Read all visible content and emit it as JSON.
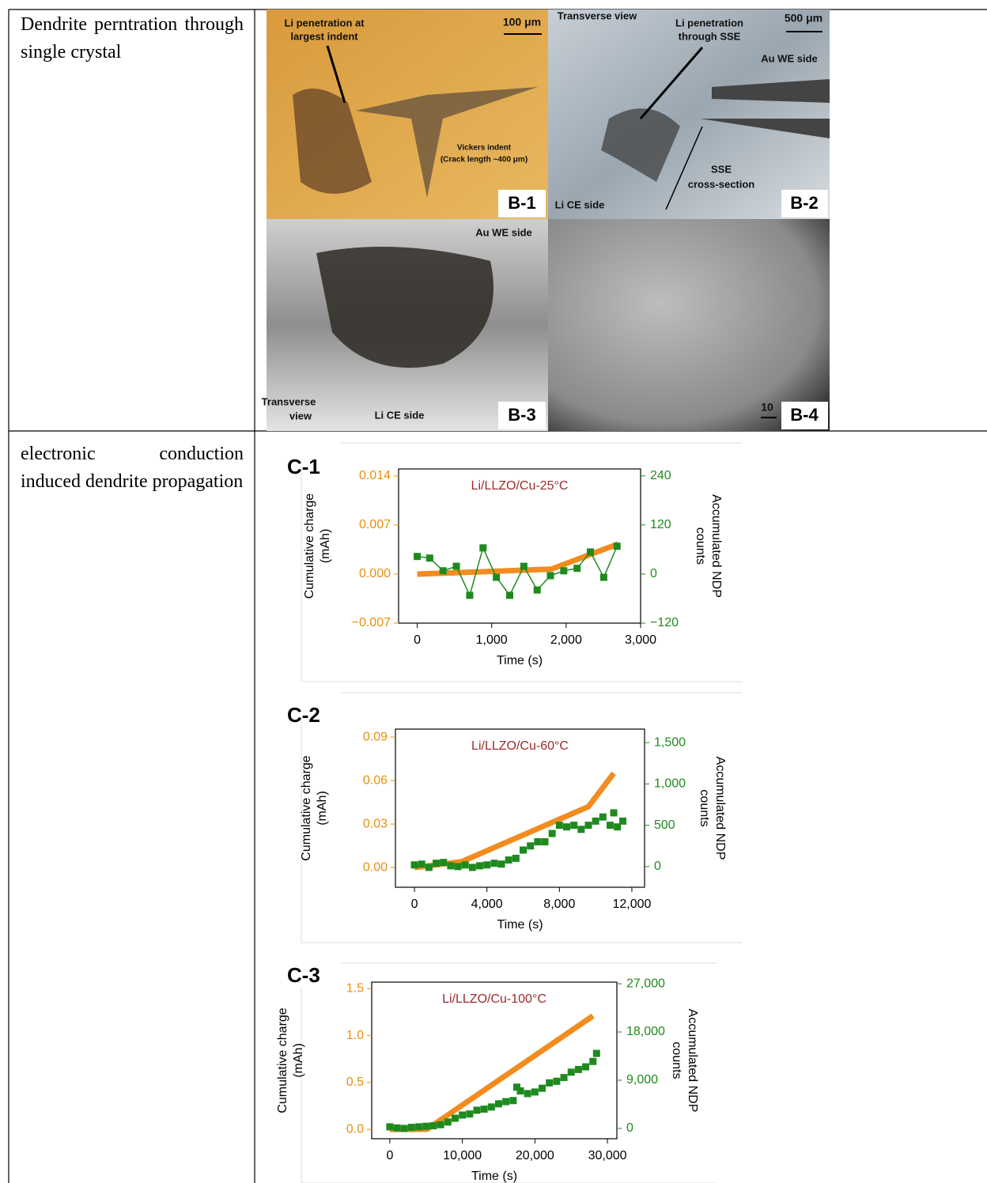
{
  "rows": [
    {
      "label": "Dendrite perntration through single crystal",
      "panels": [
        {
          "id": "B-1",
          "texts": [
            "Li penetration at",
            "largest indent",
            "100 μm",
            "Vickers indent",
            "(Crack length ~400 μm)"
          ]
        },
        {
          "id": "B-2",
          "texts": [
            "Transverse view",
            "Li penetration",
            "through SSE",
            "500 μm",
            "Au WE side",
            "SSE",
            "cross-section",
            "Li CE side"
          ]
        },
        {
          "id": "B-3",
          "texts": [
            "Au WE side",
            "Transverse",
            "view",
            "Li CE side"
          ]
        },
        {
          "id": "B-4",
          "texts": [
            "10"
          ]
        }
      ]
    },
    {
      "label": "electronic conduction induced dendrite propagation",
      "charts": [
        {
          "type": "line",
          "panel": "C-1",
          "title": "Li/LLZO/Cu-25°C",
          "x_label": "Time (s)",
          "y_label": [
            "Cumulative charge",
            "(mAh)"
          ],
          "y2_label": [
            "Accumulated NDP",
            "counts"
          ],
          "xlim": [
            -250,
            3000
          ],
          "xticks": [
            0,
            {
              "value": 1000,
              "label": "1,000"
            },
            {
              "value": 2000,
              "label": "2,000"
            },
            {
              "value": 3000,
              "label": "3,000"
            }
          ],
          "ylim": [
            -0.007,
            0.015
          ],
          "yticks": [
            {
              "value": -0.007,
              "label": "−0.007"
            },
            {
              "value": 0,
              "label": "0.000"
            },
            {
              "value": 0.007,
              "label": "0.007"
            },
            {
              "value": 0.014,
              "label": "0.014"
            }
          ],
          "y2lim": [
            -120,
            257
          ],
          "y2ticks": [
            {
              "value": -120,
              "label": "−120"
            },
            0,
            120,
            240
          ],
          "series": [
            {
              "color": "#f28c1e",
              "x": [
                0,
                1800,
                2700
              ],
              "values": [
                0,
                0.0007,
                0.0043
              ]
            },
            {
              "color": "#1e8a1e",
              "axis": "y2",
              "marker": "square",
              "connected": true,
              "x": [
                0,
                168,
                347,
                526,
                705,
                884,
                1063,
                1242,
                1432,
                1611,
                1789,
                1968,
                2147,
                2326,
                2505,
                2684
              ],
              "values": [
                43,
                39,
                8,
                19,
                -52,
                64,
                -8,
                -52,
                19,
                -39,
                -4,
                8,
                14,
                54,
                -8,
                68
              ]
            }
          ]
        },
        {
          "type": "line",
          "panel": "C-2",
          "title": "Li/LLZO/Cu-60°C",
          "x_label": "Time (s)",
          "y_label": [
            "Cumulative charge",
            "(mAh)"
          ],
          "y2_label": [
            "Accumulated NDP",
            "counts"
          ],
          "xlim": [
            -1050,
            12700
          ],
          "xticks": [
            0,
            {
              "value": 4000,
              "label": "4,000"
            },
            {
              "value": 8000,
              "label": "8,000"
            },
            {
              "value": 12000,
              "label": "12,000"
            }
          ],
          "ylim": [
            -0.0136,
            0.0955
          ],
          "yticks": [
            {
              "value": 0,
              "label": "0.00"
            },
            {
              "value": 0.03,
              "label": "0.03"
            },
            {
              "value": 0.06,
              "label": "0.06"
            },
            {
              "value": 0.09,
              "label": "0.09"
            }
          ],
          "y2lim": [
            -250,
            1663
          ],
          "y2ticks": [
            0,
            500,
            {
              "value": 1000,
              "label": "1,000"
            },
            {
              "value": 1500,
              "label": "1,500"
            }
          ],
          "series": [
            {
              "color": "#f28c1e",
              "x": [
                0,
                2600,
                9600,
                11000
              ],
              "values": [
                0,
                0.004,
                0.042,
                0.065
              ]
            },
            {
              "color": "#1e8a1e",
              "axis": "y2",
              "marker": "square",
              "connected": false,
              "x": [
                0,
                400,
                800,
                1200,
                1600,
                2000,
                2400,
                2800,
                3200,
                3600,
                4000,
                4400,
                4800,
                5200,
                5600,
                6000,
                6400,
                6800,
                7200,
                7600,
                8000,
                8400,
                8800,
                9200,
                9600,
                10000,
                10400,
                10800,
                11000,
                11200,
                11500
              ],
              "values": [
                20,
                30,
                -10,
                40,
                50,
                10,
                0,
                20,
                -10,
                10,
                20,
                40,
                30,
                80,
                100,
                200,
                250,
                300,
                300,
                400,
                500,
                480,
                500,
                450,
                500,
                550,
                600,
                500,
                650,
                480,
                550
              ]
            }
          ]
        },
        {
          "type": "line",
          "panel": "C-3",
          "title": "Li/LLZO/Cu-100°C",
          "x_label": "Time (s)",
          "y_label": [
            "Cumulative charge",
            "(mAh)"
          ],
          "y2_label": [
            "Accumulated NDP",
            "counts"
          ],
          "xlim": [
            -2500,
            31300
          ],
          "xticks": [
            0,
            {
              "value": 10000,
              "label": "10,000"
            },
            {
              "value": 20000,
              "label": "20,000"
            },
            {
              "value": 30000,
              "label": "30,000"
            }
          ],
          "ylim": [
            -0.1,
            1.57
          ],
          "yticks": [
            {
              "value": 0,
              "label": "0.0"
            },
            0.5,
            {
              "value": 1,
              "label": "1.0"
            },
            1.5
          ],
          "y2lim": [
            -1920,
            27300
          ],
          "y2ticks": [
            0,
            {
              "value": 9000,
              "label": "9,000"
            },
            {
              "value": 18000,
              "label": "18,000"
            },
            {
              "value": 27000,
              "label": "27,000"
            }
          ],
          "series": [
            {
              "color": "#f28c1e",
              "x": [
                0,
                5100,
                28000
              ],
              "values": [
                0,
                0,
                1.21
              ]
            },
            {
              "color": "#1e8a1e",
              "axis": "y2",
              "marker": "square",
              "connected": false,
              "x": [
                0,
                1000,
                2000,
                3000,
                4000,
                5000,
                6000,
                7000,
                8000,
                9000,
                10000,
                11000,
                12000,
                13000,
                14000,
                15000,
                16000,
                17000,
                17500,
                18000,
                19000,
                20000,
                21000,
                22000,
                23000,
                24000,
                25000,
                26000,
                27000,
                28000,
                28500
              ],
              "values": [
                300,
                100,
                0,
                200,
                300,
                400,
                500,
                700,
                1200,
                1900,
                2500,
                2700,
                3400,
                3600,
                4000,
                4600,
                5000,
                5200,
                7700,
                7000,
                6500,
                6800,
                7500,
                8500,
                8800,
                9500,
                10500,
                11000,
                11500,
                12500,
                14000
              ]
            }
          ]
        }
      ]
    }
  ]
}
